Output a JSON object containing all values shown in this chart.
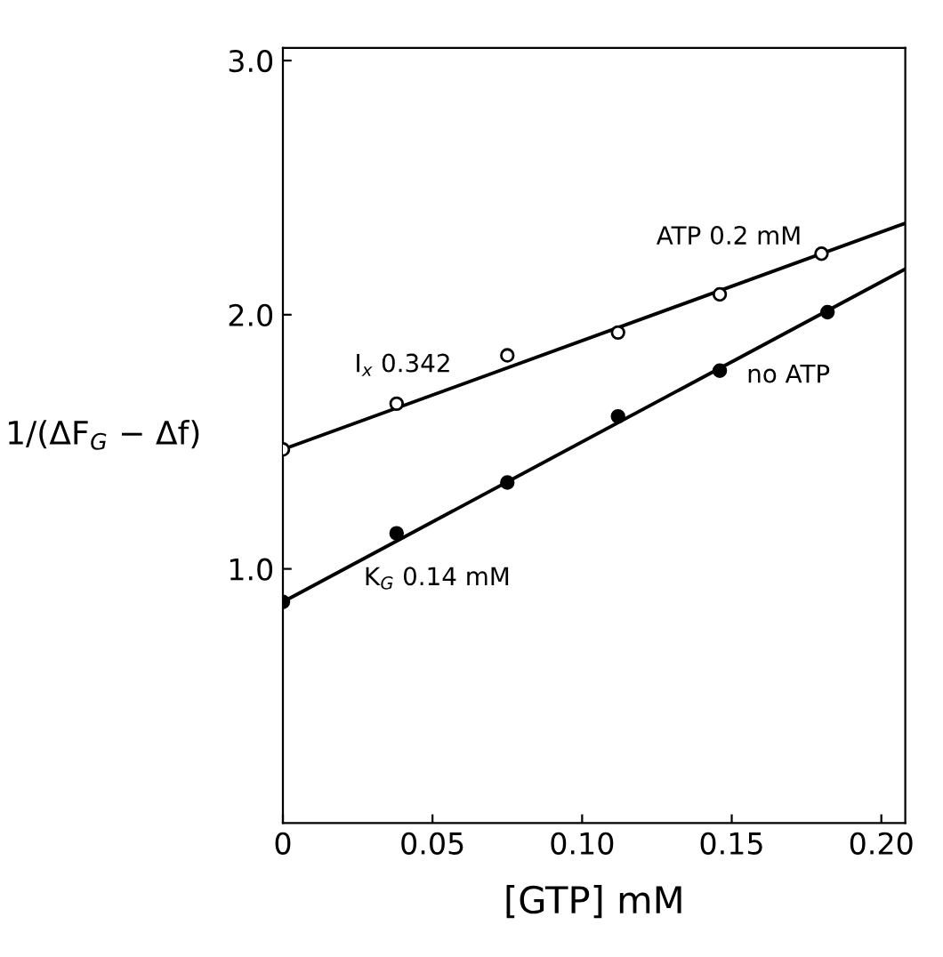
{
  "chart_data": {
    "type": "scatter",
    "xlabel": "[GTP] mM",
    "ylabel": "1/(ΔF$_{G}$ − Δf)",
    "xlim": [
      0,
      0.208
    ],
    "ylim": [
      0,
      3.05
    ],
    "xticks": [
      {
        "value": 0,
        "label": "0"
      },
      0.05,
      {
        "value": 0.1,
        "label": "0.10"
      },
      0.15,
      {
        "value": 0.2,
        "label": "0.20"
      }
    ],
    "yticks": [
      {
        "value": 1,
        "label": "1.0"
      },
      {
        "value": 2,
        "label": "2.0"
      },
      {
        "value": 3,
        "label": "3.0"
      }
    ],
    "grid": false,
    "series": [
      {
        "marker": "circle",
        "color": "#000000",
        "x": [
          0,
          0.038,
          0.075,
          0.112,
          0.146,
          0.18
        ],
        "values": [
          1.47,
          1.65,
          1.84,
          1.93,
          2.08,
          2.24
        ]
      },
      {
        "marker": "circle",
        "color": "#000000",
        "x": [
          0,
          0.038,
          0.075,
          0.112,
          0.146,
          0.182
        ],
        "values": [
          0.87,
          1.14,
          1.34,
          1.6,
          1.78,
          2.01
        ]
      },
      {
        "type": "line",
        "color": "#000000",
        "x": [
          0,
          0.208
        ],
        "values": [
          1.47,
          2.36
        ]
      },
      {
        "type": "line",
        "color": "#000000",
        "x": [
          0,
          0.208
        ],
        "values": [
          0.87,
          2.18
        ]
      }
    ],
    "annotations": [
      "ATP 0.2 mM",
      "I$_{x}$ 0.342",
      "no ATP",
      "K$_{G}$ 0.14 mM"
    ]
  }
}
